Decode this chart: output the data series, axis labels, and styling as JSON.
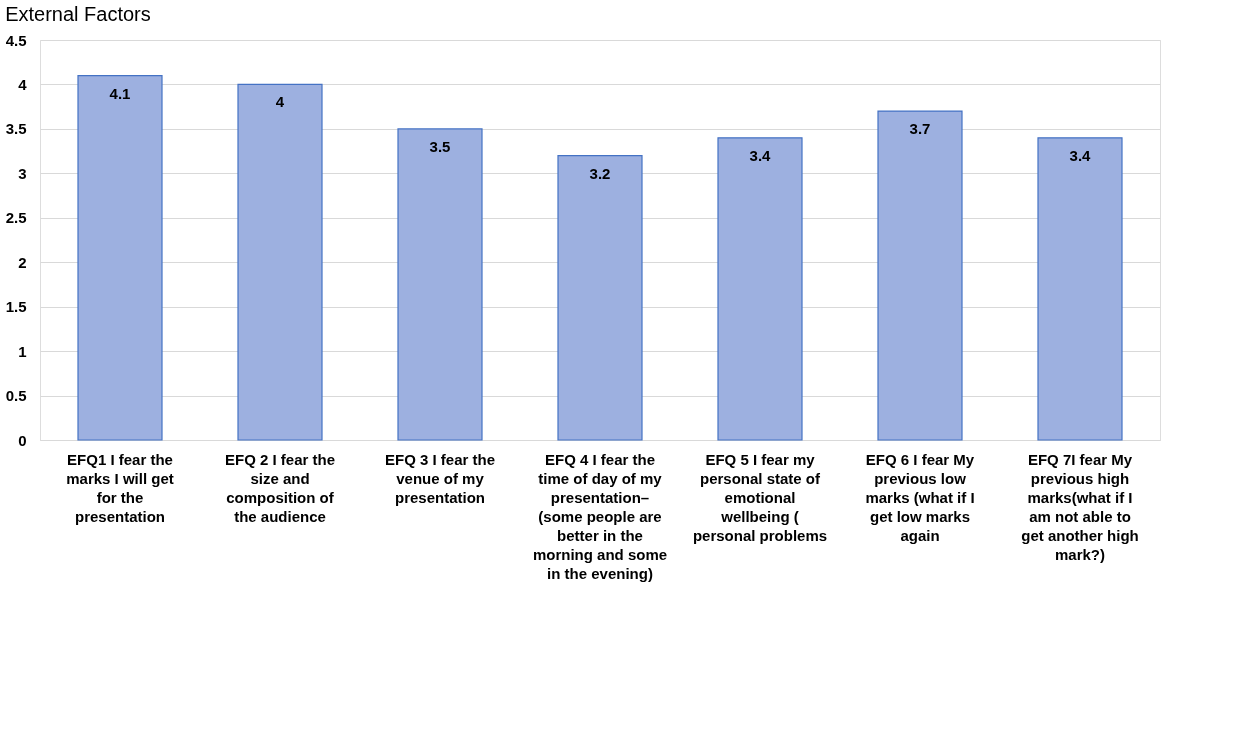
{
  "chart_data": {
    "type": "bar",
    "title": "External Factors",
    "categories": [
      "EFQ1 I fear  the marks I will get for the presentation",
      "EFQ 2 I fear  the size and composition of the audience",
      "EFQ 3 I fear  the venue of my presentation",
      "EFQ 4 I fear  the  time of day of my presentation– (some people are better in the morning and some in the evening)",
      "EFQ 5 I fear  my personal state of emotional wellbeing ( personal problems",
      "EFQ 6 I fear  My previous low marks (what if I get low marks again",
      "EFQ 7I fear  My previous high marks(what if I am not able to get  another high mark?)"
    ],
    "values": [
      4.1,
      4,
      3.5,
      3.2,
      3.4,
      3.7,
      3.4
    ],
    "color": "#9db0e0",
    "ylim": [
      0,
      4.5
    ],
    "yticks": [
      0,
      0.5,
      1,
      1.5,
      2,
      2.5,
      3,
      3.5,
      4,
      4.5
    ],
    "grid": "y",
    "data_labels": true
  }
}
